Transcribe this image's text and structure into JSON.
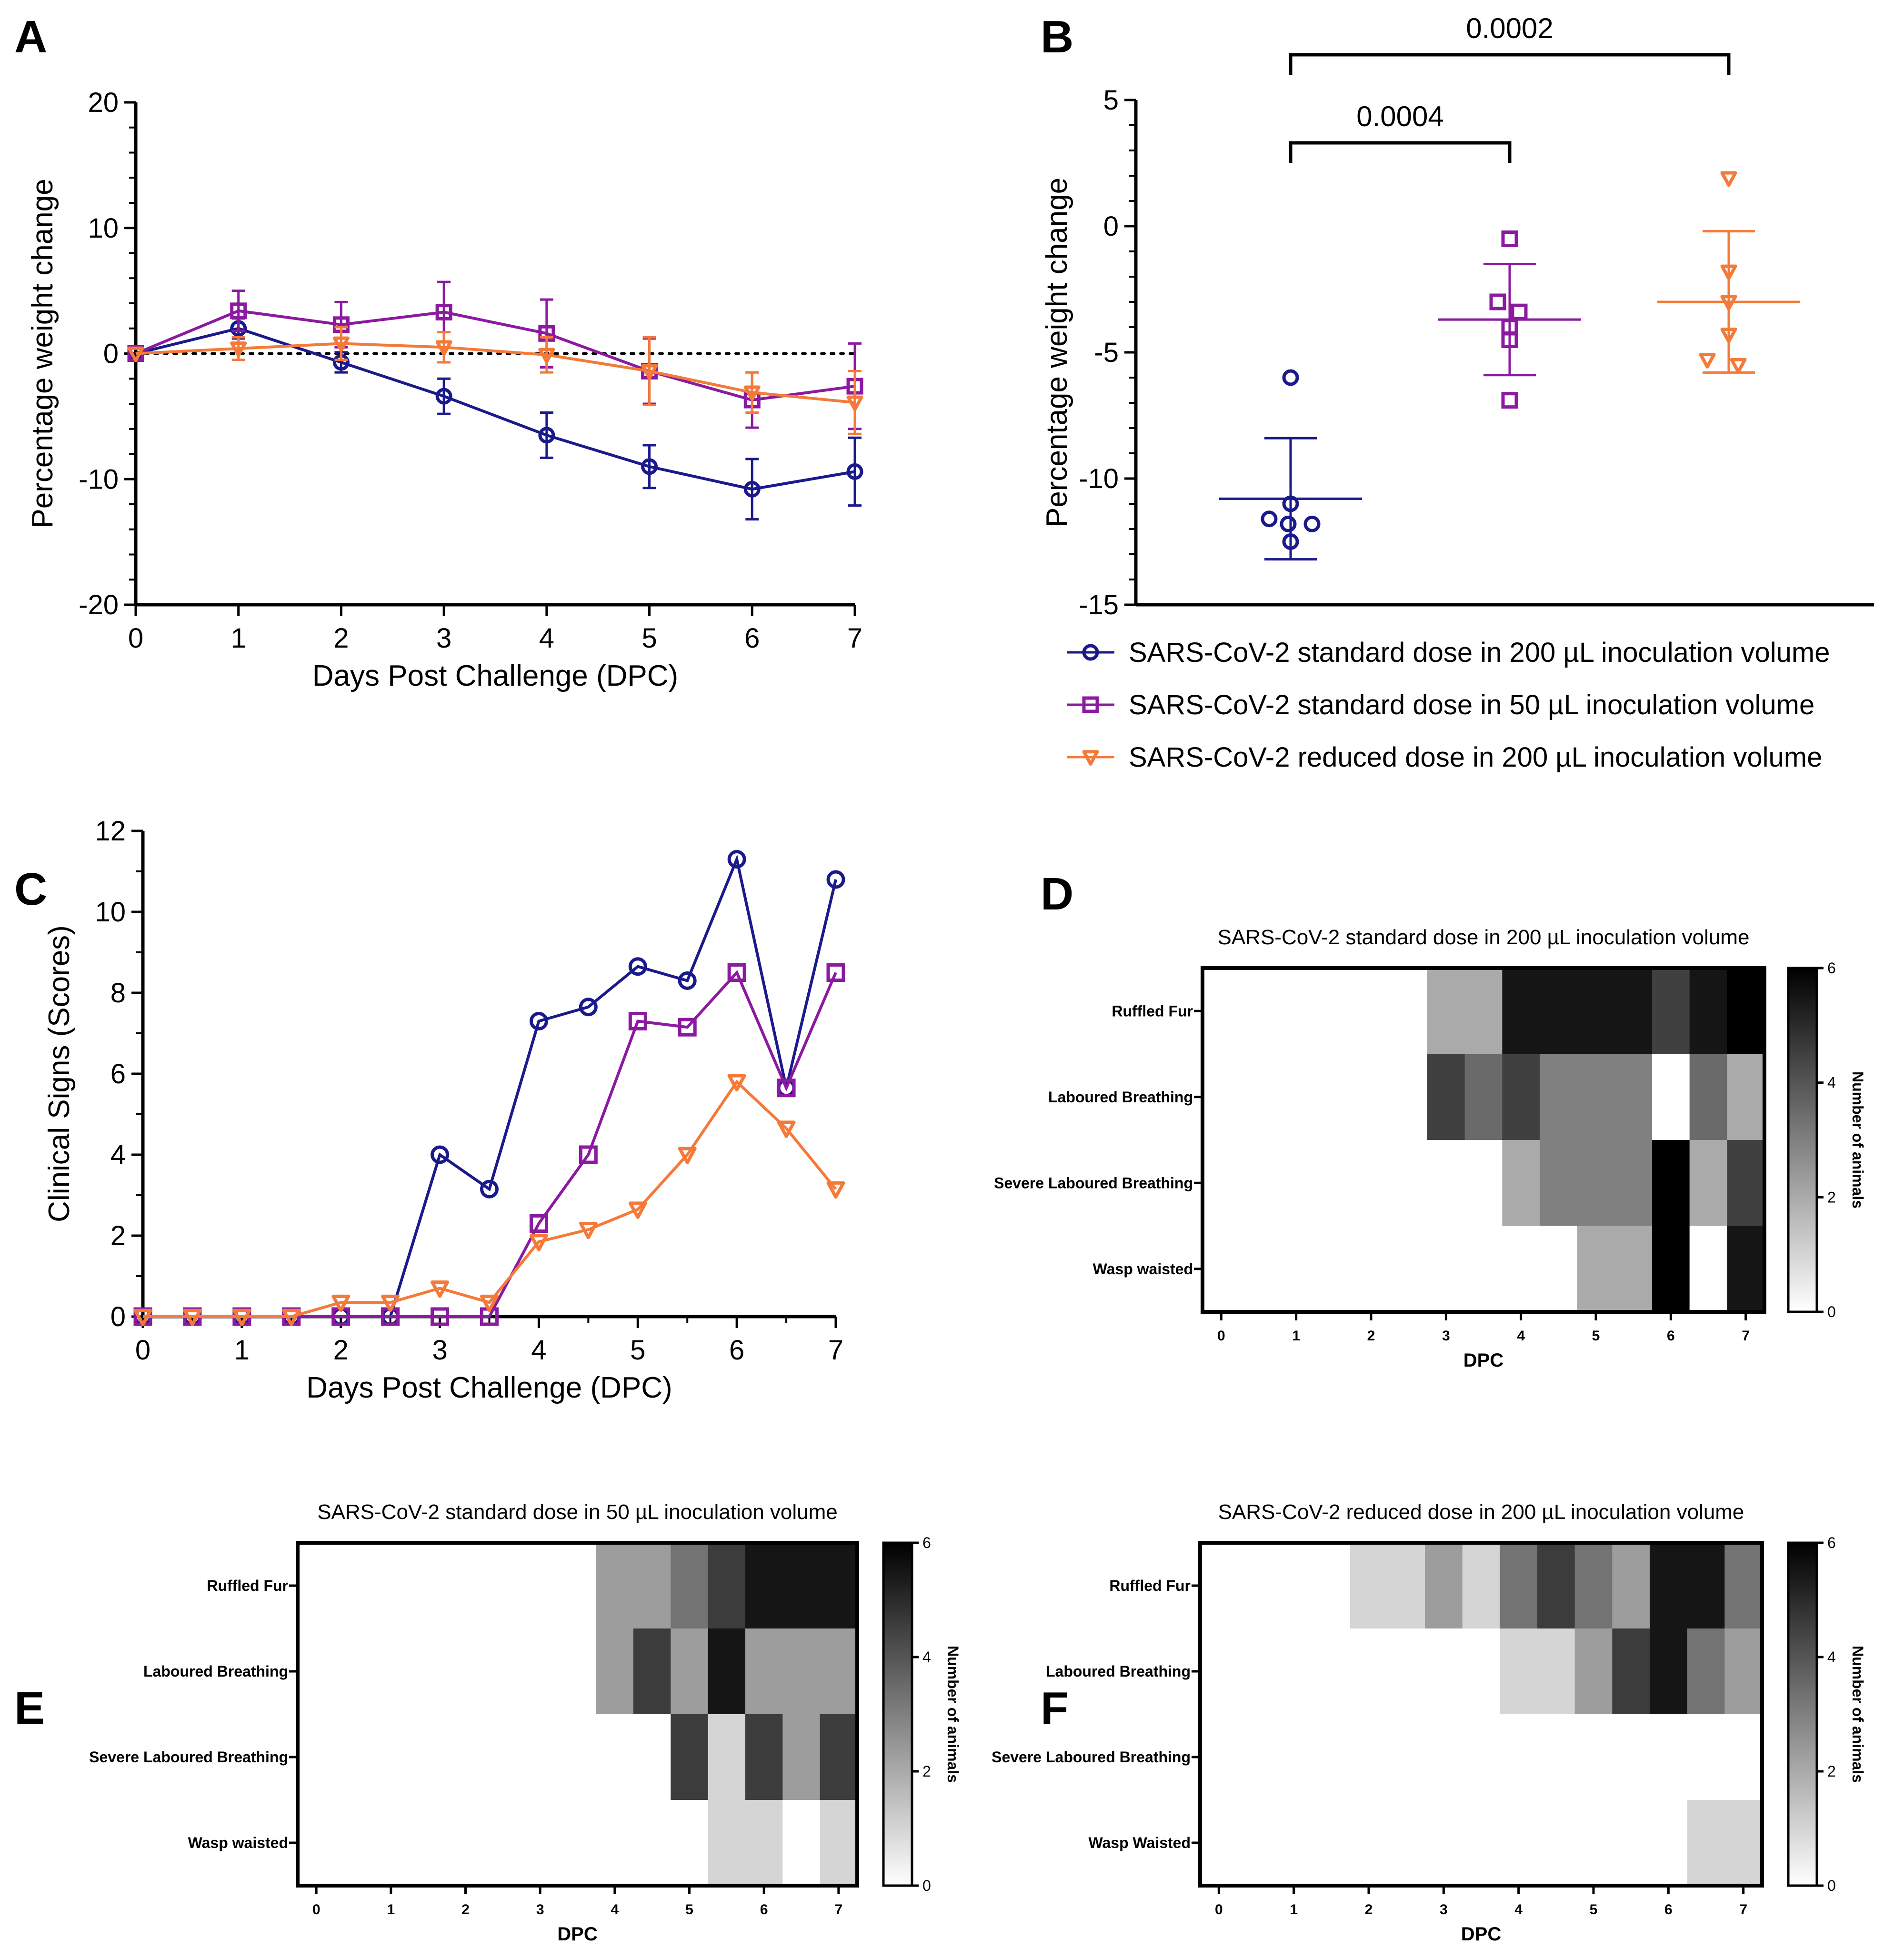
{
  "colors": {
    "standard_200": "#1a1a8c",
    "standard_50": "#8b1aa0",
    "reduced_200": "#f47a3a",
    "axis": "#000000"
  },
  "legend": {
    "items": [
      {
        "key": "standard_200",
        "label": "SARS-CoV-2 standard dose in 200 µL inoculation volume",
        "marker": "circle"
      },
      {
        "key": "standard_50",
        "label": "SARS-CoV-2 standard dose in 50 µL inoculation volume",
        "marker": "square"
      },
      {
        "key": "reduced_200",
        "label": "SARS-CoV-2 reduced dose in 200 µL inoculation volume",
        "marker": "triangle-down"
      }
    ]
  },
  "chart_data": [
    {
      "panel": "A",
      "type": "line",
      "title": "",
      "xlabel": "Days Post Challenge (DPC)",
      "ylabel": "Percentage weight change",
      "xlim": [
        0,
        7
      ],
      "ylim": [
        -20,
        20
      ],
      "xticks": [
        "0",
        "1",
        "2",
        "3",
        "4",
        "5",
        "6",
        "7"
      ],
      "yticks": [
        "20",
        "10",
        "0",
        "-10",
        "-20"
      ],
      "reference_line": 0,
      "x": [
        0,
        1,
        2,
        3,
        4,
        5,
        6,
        7
      ],
      "series": [
        {
          "name": "SARS-CoV-2 standard dose in 200 µL inoculation volume",
          "key": "standard_200",
          "marker": "circle",
          "values": [
            0,
            2,
            -0.7,
            -3.4,
            -6.5,
            -9,
            -10.8,
            -9.4
          ],
          "error": [
            0,
            0.8,
            0.8,
            1.4,
            1.8,
            1.7,
            2.4,
            2.7
          ]
        },
        {
          "name": "SARS-CoV-2 standard dose in 50 µL inoculation volume",
          "key": "standard_50",
          "marker": "square",
          "values": [
            0,
            3.4,
            2.3,
            3.3,
            1.6,
            -1.4,
            -3.7,
            -2.6
          ],
          "error": [
            0,
            1.6,
            1.8,
            2.4,
            2.7,
            2.6,
            2.2,
            3.4
          ]
        },
        {
          "name": "SARS-CoV-2 reduced dose in 200 µL inoculation volume",
          "key": "reduced_200",
          "marker": "triangle-down",
          "values": [
            0,
            0.4,
            0.8,
            0.5,
            -0.1,
            -1.4,
            -3.1,
            -3.9
          ],
          "error": [
            0,
            0.9,
            1.3,
            1.2,
            1.4,
            2.7,
            1.6,
            2.5
          ]
        }
      ]
    },
    {
      "panel": "B",
      "type": "scatter",
      "title": "",
      "xlabel": "",
      "ylabel": "Percentage weight change",
      "ylim": [
        -15,
        5
      ],
      "yticks": [
        "5",
        "0",
        "-5",
        "-10",
        "-15"
      ],
      "groups": [
        {
          "key": "standard_200",
          "marker": "circle",
          "mean": -10.8,
          "sd_upper": -8.4,
          "sd_lower": -13.2,
          "points": [
            -6.0,
            -11.0,
            -11.6,
            -11.8,
            -11.8,
            -12.5
          ]
        },
        {
          "key": "standard_50",
          "marker": "square",
          "mean": -3.7,
          "sd_upper": -1.5,
          "sd_lower": -5.9,
          "points": [
            -0.5,
            -3.0,
            -3.4,
            -4.0,
            -4.5,
            -6.9
          ]
        },
        {
          "key": "reduced_200",
          "marker": "triangle-down",
          "mean": -3.0,
          "sd_upper": -0.2,
          "sd_lower": -5.8,
          "points": [
            1.9,
            -1.8,
            -3.0,
            -4.3,
            -5.3,
            -5.5
          ]
        }
      ],
      "comparisons": [
        {
          "from": 0,
          "to": 1,
          "label": "0.0004"
        },
        {
          "from": 0,
          "to": 2,
          "label": "0.0002"
        }
      ]
    },
    {
      "panel": "C",
      "type": "line",
      "title": "",
      "xlabel": "Days Post Challenge (DPC)",
      "ylabel": "Clinical Signs (Scores)",
      "xlim": [
        0,
        7
      ],
      "ylim": [
        0,
        12
      ],
      "xticks": [
        "0",
        "1",
        "2",
        "3",
        "4",
        "5",
        "6",
        "7"
      ],
      "yticks": [
        "12",
        "10",
        "8",
        "6",
        "4",
        "2",
        "0"
      ],
      "x": [
        0,
        0.5,
        1,
        1.5,
        2,
        2.5,
        3,
        3.5,
        4,
        4.5,
        5,
        5.5,
        6,
        6.5,
        7
      ],
      "series": [
        {
          "name": "SARS-CoV-2 standard dose in 200 µL inoculation volume",
          "key": "standard_200",
          "marker": "circle",
          "values": [
            0,
            0,
            0,
            0,
            0,
            0,
            4.0,
            3.15,
            7.3,
            7.65,
            8.65,
            8.3,
            11.3,
            5.65,
            10.8
          ]
        },
        {
          "name": "SARS-CoV-2 standard dose in 50 µL inoculation volume",
          "key": "standard_50",
          "marker": "square",
          "values": [
            0,
            0,
            0,
            0,
            0,
            0,
            0,
            0,
            2.3,
            4.0,
            7.3,
            7.15,
            8.5,
            5.65,
            8.5
          ]
        },
        {
          "name": "SARS-CoV-2 reduced dose in 200 µL inoculation volume",
          "key": "reduced_200",
          "marker": "triangle-down",
          "values": [
            0,
            0,
            0,
            0,
            0.35,
            0.35,
            0.7,
            0.35,
            1.85,
            2.15,
            2.65,
            4.0,
            5.8,
            4.65,
            3.15
          ]
        }
      ]
    },
    {
      "panel": "D",
      "type": "heatmap",
      "title": "SARS-CoV-2 standard dose in 200 µL inoculation volume",
      "xlabel": "DPC",
      "xticks": [
        "0",
        "1",
        "2",
        "3",
        "4",
        "5",
        "6",
        "7"
      ],
      "rows": [
        "Ruffled Fur",
        "Laboured Breathing",
        "Severe Laboured Breathing",
        "Wasp waisted"
      ],
      "colorbar": {
        "label": "Number of animals",
        "min": 0,
        "max": 6,
        "ticks": [
          "6",
          "4",
          "2",
          "0"
        ]
      },
      "values": [
        [
          0,
          0,
          0,
          0,
          0,
          0,
          2,
          2,
          5.5,
          5.5,
          5.5,
          5.5,
          4.5,
          5.5,
          6
        ],
        [
          0,
          0,
          0,
          0,
          0,
          0,
          4.5,
          3.5,
          4.5,
          3,
          3,
          3,
          0,
          3.5,
          2
        ],
        [
          0,
          0,
          0,
          0,
          0,
          0,
          0,
          0,
          2,
          3,
          3,
          3,
          6,
          2,
          4.5
        ],
        [
          0,
          0,
          0,
          0,
          0,
          0,
          0,
          0,
          0,
          0,
          2,
          2,
          6,
          0,
          5.5
        ]
      ]
    },
    {
      "panel": "E",
      "type": "heatmap",
      "title": "SARS-CoV-2 standard dose in 50 µL inoculation volume",
      "xlabel": "DPC",
      "xticks": [
        "0",
        "1",
        "2",
        "3",
        "4",
        "5",
        "6",
        "7"
      ],
      "rows": [
        "Ruffled Fur",
        "Laboured Breathing",
        "Severe Laboured Breathing",
        "Wasp waisted"
      ],
      "colorbar": {
        "label": "Number of animals",
        "min": 0,
        "max": 6,
        "ticks": [
          "6",
          "4",
          "2",
          "0"
        ]
      },
      "values": [
        [
          0,
          0,
          0,
          0,
          0,
          0,
          0,
          0,
          2.3,
          2.3,
          3.3,
          4.6,
          5.5,
          5.5,
          5.5
        ],
        [
          0,
          0,
          0,
          0,
          0,
          0,
          0,
          0,
          2.3,
          4.6,
          2.3,
          5.5,
          2.3,
          2.3,
          2.3
        ],
        [
          0,
          0,
          0,
          0,
          0,
          0,
          0,
          0,
          0,
          0,
          4.6,
          1,
          4.6,
          2.3,
          4.6
        ],
        [
          0,
          0,
          0,
          0,
          0,
          0,
          0,
          0,
          0,
          0,
          0,
          1,
          1,
          0,
          1
        ]
      ]
    },
    {
      "panel": "F",
      "type": "heatmap",
      "title": "SARS-CoV-2 reduced dose in 200 µL inoculation volume",
      "xlabel": "DPC",
      "xticks": [
        "0",
        "1",
        "2",
        "3",
        "4",
        "5",
        "6",
        "7"
      ],
      "rows": [
        "Ruffled Fur",
        "Laboured Breathing",
        "Severe Laboured Breathing",
        "Wasp Waisted"
      ],
      "colorbar": {
        "label": "Number of animals",
        "min": 0,
        "max": 6,
        "ticks": [
          "6",
          "4",
          "2",
          "0"
        ]
      },
      "values": [
        [
          0,
          0,
          0,
          0,
          1,
          1,
          2.3,
          1,
          3.3,
          4.6,
          3.3,
          2.3,
          5.5,
          5.5,
          3.3
        ],
        [
          0,
          0,
          0,
          0,
          0,
          0,
          0,
          0,
          1,
          1,
          2.3,
          4.6,
          5.5,
          3.3,
          2.3
        ],
        [
          0,
          0,
          0,
          0,
          0,
          0,
          0,
          0,
          0,
          0,
          0,
          0,
          0,
          0,
          0
        ],
        [
          0,
          0,
          0,
          0,
          0,
          0,
          0,
          0,
          0,
          0,
          0,
          0,
          0,
          1,
          1
        ]
      ]
    }
  ],
  "panel_letters": [
    "A",
    "B",
    "C",
    "D",
    "E",
    "F"
  ]
}
